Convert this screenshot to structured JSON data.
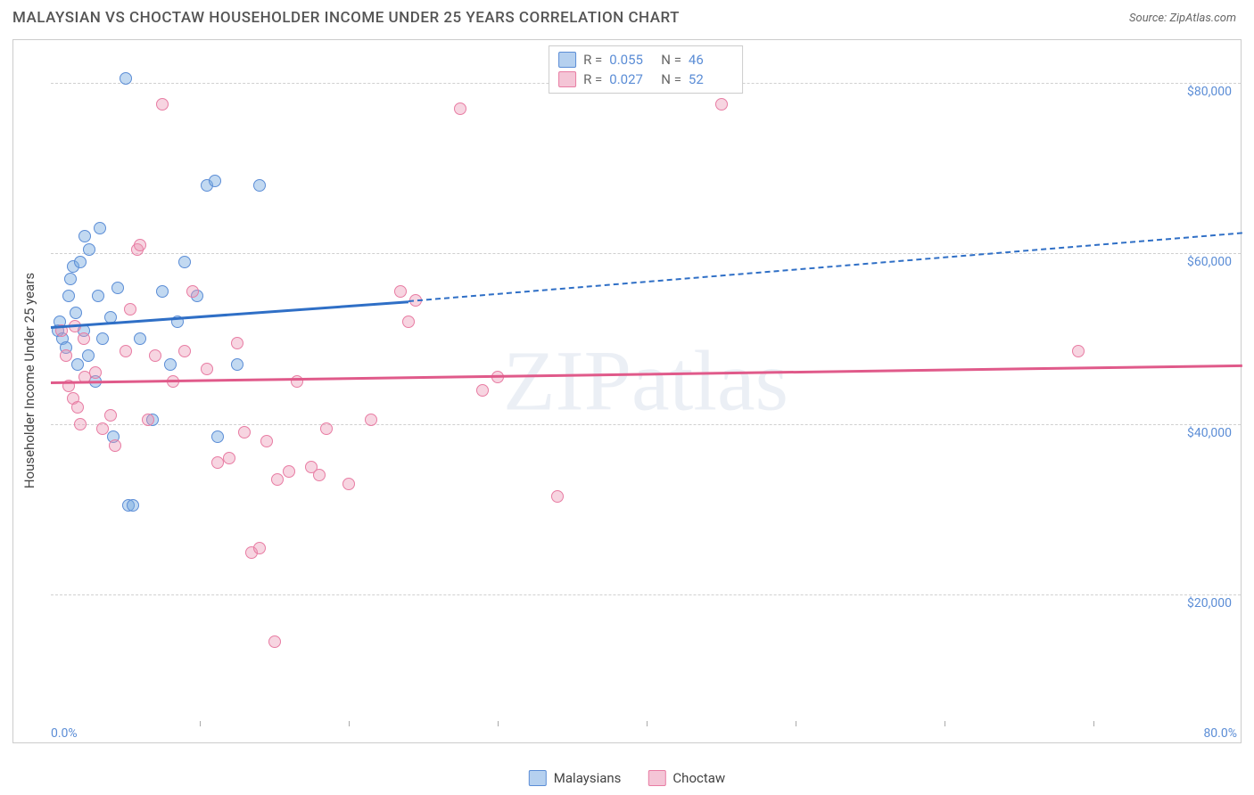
{
  "header": {
    "title": "MALAYSIAN VS CHOCTAW HOUSEHOLDER INCOME UNDER 25 YEARS CORRELATION CHART",
    "source_label": "Source: ",
    "source_name": "ZipAtlas.com"
  },
  "chart": {
    "type": "scatter",
    "y_axis_label": "Householder Income Under 25 years",
    "x_min": 0.0,
    "x_max": 80.0,
    "x_min_label": "0.0%",
    "x_max_label": "80.0%",
    "y_min": 5000,
    "y_max": 85000,
    "x_tick_step": 10,
    "y_gridlines": [
      {
        "value": 20000,
        "label": "$20,000"
      },
      {
        "value": 40000,
        "label": "$40,000"
      },
      {
        "value": 60000,
        "label": "$60,000"
      },
      {
        "value": 80000,
        "label": "$80,000"
      }
    ],
    "background_color": "#ffffff",
    "grid_color": "#d0d0d0",
    "border_color": "#cccccc",
    "watermark_text": "ZIPatlas",
    "series": [
      {
        "name": "Malaysians",
        "legend_label": "Malaysians",
        "point_fill": "rgba(120,170,225,0.45)",
        "point_stroke": "#5b8dd6",
        "line_color": "#2f6fc6",
        "swatch_fill": "rgba(120,170,225,0.55)",
        "r_value": "0.055",
        "n_value": "46",
        "trend": {
          "x1": 0,
          "y1": 51500,
          "x2_solid": 24,
          "y2_solid": 54500,
          "x2_dashed": 80,
          "y2_dashed": 62500
        },
        "points": [
          {
            "x": 0.5,
            "y": 51000
          },
          {
            "x": 0.6,
            "y": 52000
          },
          {
            "x": 0.8,
            "y": 50000
          },
          {
            "x": 1.0,
            "y": 49000
          },
          {
            "x": 1.2,
            "y": 55000
          },
          {
            "x": 1.3,
            "y": 57000
          },
          {
            "x": 1.5,
            "y": 58500
          },
          {
            "x": 1.7,
            "y": 53000
          },
          {
            "x": 1.8,
            "y": 47000
          },
          {
            "x": 2.0,
            "y": 59000
          },
          {
            "x": 2.2,
            "y": 51000
          },
          {
            "x": 2.3,
            "y": 62000
          },
          {
            "x": 2.5,
            "y": 48000
          },
          {
            "x": 2.6,
            "y": 60500
          },
          {
            "x": 3.0,
            "y": 45000
          },
          {
            "x": 3.2,
            "y": 55000
          },
          {
            "x": 3.3,
            "y": 63000
          },
          {
            "x": 3.5,
            "y": 50000
          },
          {
            "x": 4.0,
            "y": 52500
          },
          {
            "x": 4.2,
            "y": 38500
          },
          {
            "x": 4.5,
            "y": 56000
          },
          {
            "x": 5.0,
            "y": 80500
          },
          {
            "x": 5.2,
            "y": 30500
          },
          {
            "x": 5.5,
            "y": 30500
          },
          {
            "x": 6.0,
            "y": 50000
          },
          {
            "x": 6.8,
            "y": 40500
          },
          {
            "x": 7.5,
            "y": 55500
          },
          {
            "x": 8.0,
            "y": 47000
          },
          {
            "x": 8.5,
            "y": 52000
          },
          {
            "x": 9.0,
            "y": 59000
          },
          {
            "x": 9.8,
            "y": 55000
          },
          {
            "x": 10.5,
            "y": 68000
          },
          {
            "x": 11.0,
            "y": 68500
          },
          {
            "x": 11.2,
            "y": 38500
          },
          {
            "x": 12.5,
            "y": 47000
          },
          {
            "x": 14.0,
            "y": 68000
          }
        ]
      },
      {
        "name": "Choctaw",
        "legend_label": "Choctaw",
        "point_fill": "rgba(235,150,180,0.40)",
        "point_stroke": "#e87ca3",
        "line_color": "#e05a8a",
        "swatch_fill": "rgba(235,150,180,0.55)",
        "r_value": "0.027",
        "n_value": "52",
        "trend": {
          "x1": 0,
          "y1": 45000,
          "x2_solid": 80,
          "y2_solid": 47000
        },
        "points": [
          {
            "x": 0.7,
            "y": 51000
          },
          {
            "x": 1.0,
            "y": 48000
          },
          {
            "x": 1.2,
            "y": 44500
          },
          {
            "x": 1.5,
            "y": 43000
          },
          {
            "x": 1.6,
            "y": 51500
          },
          {
            "x": 1.8,
            "y": 42000
          },
          {
            "x": 2.0,
            "y": 40000
          },
          {
            "x": 2.2,
            "y": 50000
          },
          {
            "x": 2.3,
            "y": 45500
          },
          {
            "x": 3.0,
            "y": 46000
          },
          {
            "x": 3.5,
            "y": 39500
          },
          {
            "x": 4.0,
            "y": 41000
          },
          {
            "x": 4.3,
            "y": 37500
          },
          {
            "x": 5.0,
            "y": 48500
          },
          {
            "x": 5.3,
            "y": 53500
          },
          {
            "x": 5.8,
            "y": 60500
          },
          {
            "x": 6.0,
            "y": 61000
          },
          {
            "x": 6.5,
            "y": 40500
          },
          {
            "x": 7.0,
            "y": 48000
          },
          {
            "x": 7.5,
            "y": 77500
          },
          {
            "x": 8.2,
            "y": 45000
          },
          {
            "x": 9.0,
            "y": 48500
          },
          {
            "x": 9.5,
            "y": 55500
          },
          {
            "x": 10.5,
            "y": 46500
          },
          {
            "x": 11.2,
            "y": 35500
          },
          {
            "x": 12.0,
            "y": 36000
          },
          {
            "x": 12.5,
            "y": 49500
          },
          {
            "x": 13.0,
            "y": 39000
          },
          {
            "x": 13.5,
            "y": 25000
          },
          {
            "x": 14.0,
            "y": 25500
          },
          {
            "x": 14.5,
            "y": 38000
          },
          {
            "x": 15.0,
            "y": 14500
          },
          {
            "x": 15.2,
            "y": 33500
          },
          {
            "x": 16.0,
            "y": 34500
          },
          {
            "x": 16.5,
            "y": 45000
          },
          {
            "x": 17.5,
            "y": 35000
          },
          {
            "x": 18.0,
            "y": 34000
          },
          {
            "x": 18.5,
            "y": 39500
          },
          {
            "x": 20.0,
            "y": 33000
          },
          {
            "x": 21.5,
            "y": 40500
          },
          {
            "x": 23.5,
            "y": 55500
          },
          {
            "x": 24.0,
            "y": 52000
          },
          {
            "x": 24.5,
            "y": 54500
          },
          {
            "x": 27.5,
            "y": 77000
          },
          {
            "x": 29.0,
            "y": 44000
          },
          {
            "x": 30.0,
            "y": 45500
          },
          {
            "x": 34.0,
            "y": 31500
          },
          {
            "x": 45.0,
            "y": 77500
          },
          {
            "x": 69.0,
            "y": 48500
          }
        ]
      }
    ],
    "legend_top": {
      "r_label": "R",
      "n_label": "N",
      "eq": "="
    }
  },
  "bottom_legend": {
    "series": [
      "Malaysians",
      "Choctaw"
    ]
  }
}
